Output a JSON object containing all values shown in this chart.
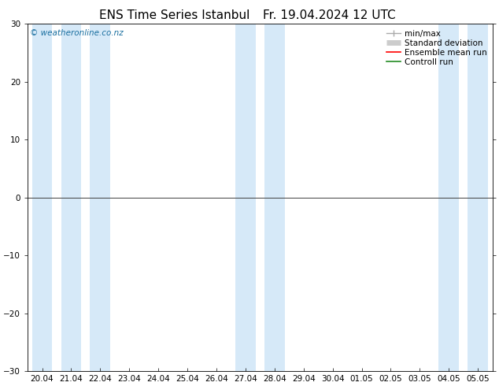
{
  "title": "ENS Time Series Istanbul",
  "title2": "Fr. 19.04.2024 12 UTC",
  "watermark": "© weatheronline.co.nz",
  "ylim": [
    -30,
    30
  ],
  "yticks": [
    -30,
    -20,
    -10,
    0,
    10,
    20,
    30
  ],
  "x_labels": [
    "20.04",
    "21.04",
    "22.04",
    "23.04",
    "24.04",
    "25.04",
    "26.04",
    "27.04",
    "28.04",
    "29.04",
    "30.04",
    "01.05",
    "02.05",
    "03.05",
    "04.05",
    "05.05"
  ],
  "shaded_bands": [
    0,
    1,
    2,
    7,
    8,
    14,
    15
  ],
  "background_color": "#ffffff",
  "band_color": "#d6e9f8",
  "zero_line_color": "#404040",
  "title_fontsize": 11,
  "tick_fontsize": 7.5,
  "legend_fontsize": 7.5,
  "watermark_color": "#1a6fa0"
}
